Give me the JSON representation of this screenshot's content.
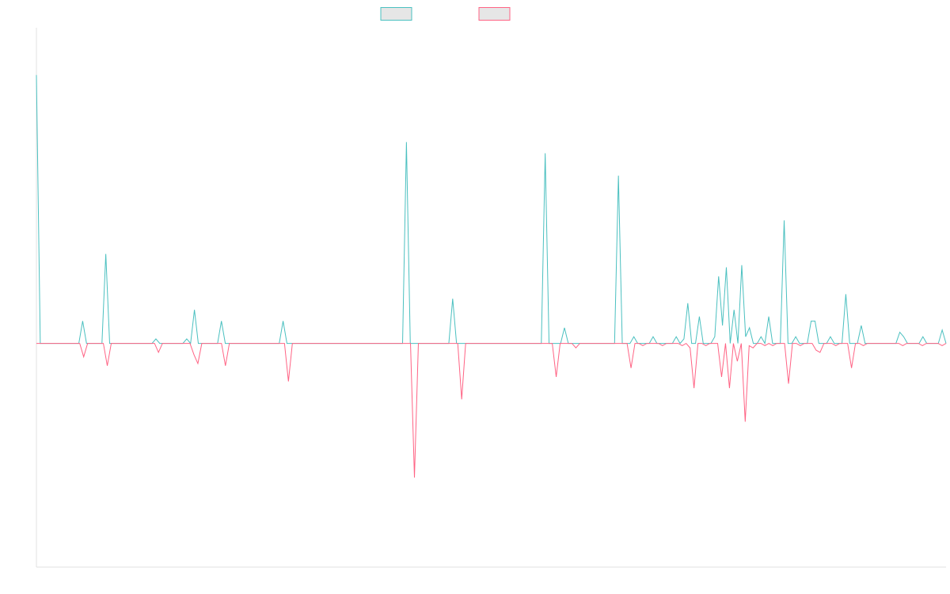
{
  "chart_data": {
    "type": "line",
    "title": "",
    "xlabel": "",
    "ylabel": "",
    "grid": false,
    "legend_position": "top-center",
    "ylim": [
      -1,
      1.5
    ],
    "series": [
      {
        "name": "",
        "color": "#4bc0c0",
        "fill": "#e6e6e6",
        "values": [
          1.2,
          0,
          0,
          0,
          0,
          0,
          0,
          0,
          0,
          0,
          0,
          0,
          0.1,
          0,
          0,
          0,
          0,
          0,
          0.4,
          0,
          0,
          0,
          0,
          0,
          0,
          0,
          0,
          0,
          0,
          0,
          0,
          0.02,
          0,
          0,
          0,
          0,
          0,
          0,
          0,
          0.02,
          0,
          0.15,
          0,
          0,
          0,
          0,
          0,
          0,
          0.1,
          0,
          0,
          0,
          0,
          0,
          0,
          0,
          0,
          0,
          0,
          0,
          0,
          0,
          0,
          0,
          0.1,
          0,
          0,
          0,
          0,
          0,
          0,
          0,
          0,
          0,
          0,
          0,
          0,
          0,
          0,
          0,
          0,
          0,
          0,
          0,
          0,
          0,
          0,
          0,
          0,
          0,
          0,
          0,
          0,
          0,
          0,
          0,
          0.9,
          0,
          0,
          0,
          0,
          0,
          0,
          0,
          0,
          0,
          0,
          0,
          0.2,
          0,
          0,
          0,
          0,
          0,
          0,
          0,
          0,
          0,
          0,
          0,
          0,
          0,
          0,
          0,
          0,
          0,
          0,
          0,
          0,
          0,
          0,
          0,
          0.85,
          0,
          0,
          0,
          0,
          0.07,
          0,
          0,
          0,
          0,
          0,
          0,
          0,
          0,
          0,
          0,
          0,
          0,
          0,
          0.75,
          0,
          0,
          0,
          0.03,
          0,
          0,
          0,
          0,
          0.03,
          0,
          0,
          0,
          0,
          0,
          0.03,
          0,
          0.02,
          0.18,
          0,
          0,
          0.12,
          0,
          0,
          0,
          0.03,
          0.3,
          0.08,
          0.34,
          0,
          0.15,
          0,
          0.35,
          0.03,
          0.07,
          0,
          0,
          0.03,
          0,
          0.12,
          0,
          0,
          0,
          0.55,
          0,
          0,
          0.03,
          0,
          0,
          0,
          0.1,
          0.1,
          0,
          0,
          0,
          0.03,
          0,
          0,
          0,
          0.22,
          0,
          0,
          0,
          0.08,
          0,
          0,
          0,
          0,
          0,
          0,
          0,
          0,
          0,
          0.05,
          0.03,
          0,
          0,
          0,
          0,
          0.03,
          0,
          0,
          0,
          0,
          0.06,
          0
        ]
      },
      {
        "name": "",
        "color": "#ff6384",
        "fill": "#e6e6e6",
        "values": [
          0,
          0,
          0,
          0,
          0,
          0,
          0,
          0,
          0,
          0,
          0,
          0,
          -0.06,
          0,
          0,
          0,
          0,
          0,
          -0.1,
          0,
          0,
          0,
          0,
          0,
          0,
          0,
          0,
          0,
          0,
          0,
          0,
          -0.04,
          0,
          0,
          0,
          0,
          0,
          0,
          0,
          0,
          -0.05,
          -0.09,
          0,
          0,
          0,
          0,
          0,
          0,
          -0.1,
          0,
          0,
          0,
          0,
          0,
          0,
          0,
          0,
          0,
          0,
          0,
          0,
          0,
          0,
          0,
          -0.17,
          0,
          0,
          0,
          0,
          0,
          0,
          0,
          0,
          0,
          0,
          0,
          0,
          0,
          0,
          0,
          0,
          0,
          0,
          0,
          0,
          0,
          0,
          0,
          0,
          0,
          0,
          0,
          0,
          0,
          0,
          0,
          -0.6,
          0,
          0,
          0,
          0,
          0,
          0,
          0,
          0,
          0,
          0,
          0,
          -0.25,
          0,
          0,
          0,
          0,
          0,
          0,
          0,
          0,
          0,
          0,
          0,
          0,
          0,
          0,
          0,
          0,
          0,
          0,
          0,
          0,
          0,
          0,
          0,
          -0.15,
          0,
          0,
          0,
          0,
          -0.02,
          0,
          0,
          0,
          0,
          0,
          0,
          0,
          0,
          0,
          0,
          0,
          0,
          0,
          -0.11,
          0,
          0,
          -0.01,
          0,
          0,
          0,
          0,
          -0.01,
          0,
          0,
          0,
          0,
          -0.01,
          0,
          -0.02,
          -0.2,
          0,
          0,
          -0.01,
          0,
          0,
          0,
          -0.15,
          0,
          -0.2,
          0,
          -0.08,
          0,
          -0.35,
          -0.01,
          -0.02,
          0,
          0,
          -0.01,
          0,
          -0.01,
          0,
          0,
          0,
          -0.18,
          0,
          0,
          -0.01,
          0,
          0,
          0,
          -0.03,
          -0.04,
          0,
          0,
          0,
          -0.01,
          0,
          0,
          0,
          -0.11,
          0,
          0,
          -0.01,
          0,
          0,
          0,
          0,
          0,
          0,
          0,
          0,
          0,
          -0.01,
          0,
          0,
          0,
          0,
          -0.01,
          0,
          0,
          0,
          0,
          -0.01,
          0
        ]
      }
    ]
  }
}
